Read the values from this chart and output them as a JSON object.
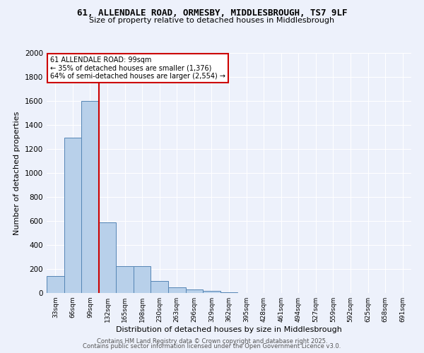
{
  "title_line1": "61, ALLENDALE ROAD, ORMESBY, MIDDLESBROUGH, TS7 9LF",
  "title_line2": "Size of property relative to detached houses in Middlesbrough",
  "xlabel": "Distribution of detached houses by size in Middlesbrough",
  "ylabel": "Number of detached properties",
  "categories": [
    "33sqm",
    "66sqm",
    "99sqm",
    "132sqm",
    "165sqm",
    "198sqm",
    "230sqm",
    "263sqm",
    "296sqm",
    "329sqm",
    "362sqm",
    "395sqm",
    "428sqm",
    "461sqm",
    "494sqm",
    "527sqm",
    "559sqm",
    "592sqm",
    "625sqm",
    "658sqm",
    "691sqm"
  ],
  "values": [
    140,
    1295,
    1600,
    590,
    225,
    225,
    100,
    50,
    28,
    18,
    8,
    0,
    0,
    0,
    0,
    0,
    0,
    0,
    0,
    0,
    0
  ],
  "bar_color": "#b8d0ea",
  "bar_edge_color": "#5585b5",
  "highlight_bar_index": 2,
  "annotation_line1": "61 ALLENDALE ROAD: 99sqm",
  "annotation_line2": "← 35% of detached houses are smaller (1,376)",
  "annotation_line3": "64% of semi-detached houses are larger (2,554) →",
  "annotation_box_color": "#ffffff",
  "annotation_box_edge": "#cc0000",
  "vline_color": "#cc0000",
  "footer_line1": "Contains HM Land Registry data © Crown copyright and database right 2025.",
  "footer_line2": "Contains public sector information licensed under the Open Government Licence v3.0.",
  "bg_color": "#edf1fb",
  "grid_color": "#ffffff",
  "ylim_max": 2000,
  "yticks": [
    0,
    200,
    400,
    600,
    800,
    1000,
    1200,
    1400,
    1600,
    1800,
    2000
  ]
}
